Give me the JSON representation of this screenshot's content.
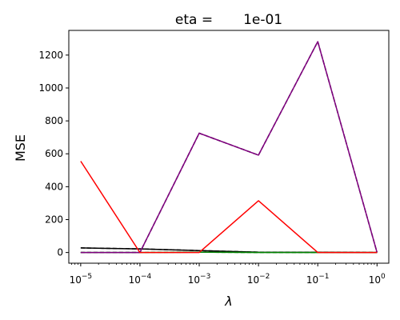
{
  "chart_data": {
    "type": "line",
    "title_prefix": "eta =",
    "title_value": "1e-01",
    "xlabel": "λ",
    "ylabel": "MSE",
    "xscale": "log",
    "xlim": [
      6.3e-06,
      1.58
    ],
    "ylim": [
      -65,
      1350
    ],
    "grid": false,
    "x": [
      1e-05,
      0.0001,
      0.001,
      0.01,
      0.1,
      1
    ],
    "x_tick_labels": [
      {
        "value": 1e-05,
        "base": "10",
        "exp": "−5"
      },
      {
        "value": 0.0001,
        "base": "10",
        "exp": "−4"
      },
      {
        "value": 0.001,
        "base": "10",
        "exp": "−3"
      },
      {
        "value": 0.01,
        "base": "10",
        "exp": "−2"
      },
      {
        "value": 0.1,
        "base": "10",
        "exp": "−1"
      },
      {
        "value": 1,
        "base": "10",
        "exp": "0"
      }
    ],
    "y_ticks": [
      0,
      200,
      400,
      600,
      800,
      1000,
      1200
    ],
    "series": [
      {
        "color": "#000000",
        "dashed": false,
        "values": [
          28,
          22,
          12,
          2,
          1,
          0
        ]
      },
      {
        "color": "#000000",
        "dashed": true,
        "values": [
          28,
          22,
          12,
          2,
          1,
          0
        ]
      },
      {
        "color": "#008000",
        "dashed": false,
        "values": [
          0,
          0,
          2,
          0,
          0,
          0
        ]
      },
      {
        "color": "#008000",
        "dashed": true,
        "values": [
          0,
          0,
          2,
          0,
          0,
          0
        ]
      },
      {
        "color": "#000000",
        "dashed": true,
        "values": [
          0,
          0,
          725,
          592,
          1282,
          0
        ]
      },
      {
        "color": "#800080",
        "dashed": false,
        "values": [
          0,
          0,
          725,
          592,
          1282,
          0
        ]
      },
      {
        "color": "#ff0000",
        "dashed": false,
        "values": [
          555,
          0,
          0,
          315,
          0,
          0
        ]
      }
    ]
  }
}
